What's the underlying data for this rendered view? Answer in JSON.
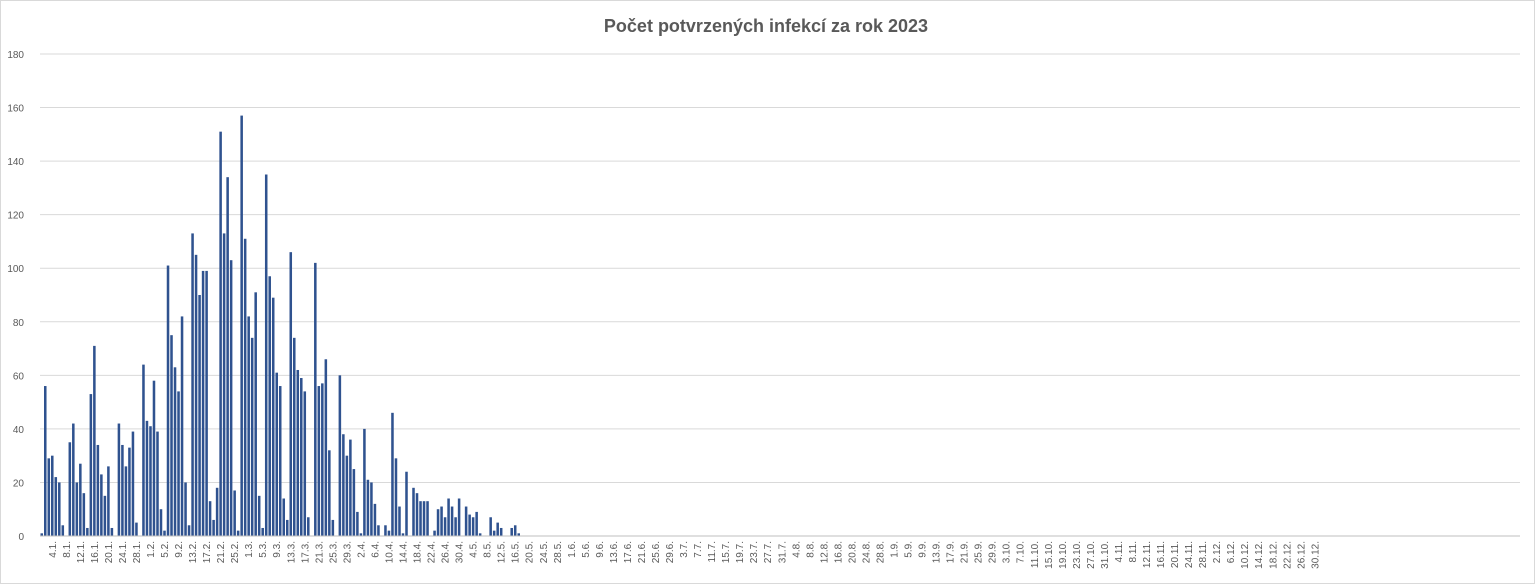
{
  "chart_data": {
    "type": "bar",
    "title": "Počet potvrzených infekcí za rok 2023",
    "xlabel": "",
    "ylabel": "",
    "ylim": [
      0,
      180
    ],
    "yticks": [
      0,
      20,
      40,
      60,
      80,
      100,
      120,
      140,
      160,
      180
    ],
    "grid": true,
    "legend": "none",
    "bar_color": "#2f528f",
    "x_start": "1.1.",
    "x_end": "31.12.",
    "tick_labels": [
      "4.1.",
      "8.1.",
      "12.1.",
      "16.1.",
      "20.1.",
      "24.1.",
      "28.1.",
      "1.2.",
      "5.2.",
      "9.2.",
      "13.2.",
      "17.2.",
      "21.2.",
      "25.2.",
      "1.3.",
      "5.3.",
      "9.3.",
      "13.3.",
      "17.3.",
      "21.3.",
      "25.3.",
      "29.3.",
      "2.4.",
      "6.4.",
      "10.4.",
      "14.4.",
      "18.4.",
      "22.4.",
      "26.4.",
      "30.4.",
      "4.5.",
      "8.5.",
      "12.5.",
      "16.5.",
      "20.5.",
      "24.5.",
      "28.5.",
      "1.6.",
      "5.6.",
      "9.6.",
      "13.6.",
      "17.6.",
      "21.6.",
      "25.6.",
      "29.6.",
      "3.7.",
      "7.7.",
      "11.7.",
      "15.7.",
      "19.7.",
      "23.7.",
      "27.7.",
      "31.7.",
      "4.8.",
      "8.8.",
      "12.8.",
      "16.8.",
      "20.8.",
      "24.8.",
      "28.8.",
      "1.9.",
      "5.9.",
      "9.9.",
      "13.9.",
      "17.9.",
      "21.9.",
      "25.9.",
      "29.9.",
      "3.10.",
      "7.10.",
      "11.10.",
      "15.10.",
      "19.10.",
      "23.10.",
      "27.10.",
      "31.10.",
      "4.11.",
      "8.11.",
      "12.11.",
      "16.11.",
      "20.11.",
      "24.11.",
      "28.11.",
      "2.12.",
      "6.12.",
      "10.12.",
      "14.12.",
      "18.12.",
      "22.12.",
      "26.12.",
      "30.12."
    ],
    "values": [
      1,
      56,
      29,
      30,
      22,
      20,
      4,
      0,
      35,
      42,
      20,
      27,
      16,
      3,
      53,
      71,
      34,
      23,
      15,
      26,
      3,
      0,
      42,
      34,
      26,
      33,
      39,
      5,
      0,
      64,
      43,
      41,
      58,
      39,
      10,
      2,
      101,
      75,
      63,
      54,
      82,
      20,
      4,
      113,
      105,
      90,
      99,
      99,
      13,
      6,
      18,
      151,
      113,
      134,
      103,
      17,
      2,
      157,
      111,
      82,
      74,
      91,
      15,
      3,
      135,
      97,
      89,
      61,
      56,
      14,
      6,
      106,
      74,
      62,
      59,
      54,
      7,
      0,
      102,
      56,
      57,
      66,
      32,
      6,
      0,
      60,
      38,
      30,
      36,
      25,
      9,
      1,
      40,
      21,
      20,
      12,
      4,
      0,
      4,
      2,
      46,
      29,
      11,
      1,
      24,
      0,
      18,
      16,
      13,
      13,
      13,
      0,
      2,
      10,
      11,
      7,
      14,
      11,
      7,
      14,
      0,
      11,
      8,
      7,
      9,
      1,
      0,
      0,
      7,
      2,
      5,
      3,
      0,
      0,
      3,
      4,
      1,
      0,
      0,
      0,
      0,
      0,
      0,
      0,
      0,
      0,
      0,
      0,
      0,
      0,
      0,
      0,
      0,
      0,
      0,
      0,
      0,
      0,
      0,
      0,
      0,
      0,
      0,
      0,
      0,
      0,
      0,
      0,
      0,
      0,
      0,
      0,
      0,
      0,
      0,
      0,
      0,
      0,
      0,
      0,
      0,
      0,
      0,
      0,
      0,
      0,
      0,
      0,
      0,
      0,
      0,
      0,
      0,
      0,
      0,
      0,
      0,
      0,
      0,
      0,
      0,
      0,
      0,
      0,
      0,
      0,
      0,
      0,
      0,
      0,
      0,
      0,
      0,
      0,
      0,
      0,
      0,
      0,
      0,
      0,
      0,
      0,
      0,
      0,
      0,
      0,
      0,
      0,
      0,
      0,
      0,
      0,
      0,
      0,
      0,
      0,
      0,
      0,
      0,
      0,
      0,
      0,
      0,
      0,
      0,
      0,
      0,
      0,
      0,
      0,
      0,
      0,
      0,
      0,
      0,
      0,
      0,
      0,
      0,
      0,
      0,
      0,
      0,
      0,
      0,
      0,
      0,
      0,
      0,
      0,
      0,
      0,
      0,
      0,
      0,
      0,
      0,
      0,
      0,
      0,
      0,
      0,
      0,
      0,
      0,
      0,
      0,
      0,
      0,
      0,
      0,
      0,
      0,
      0,
      0,
      0,
      0,
      0,
      0,
      0,
      0,
      0,
      0,
      0,
      0,
      0,
      0,
      0,
      0,
      0,
      0,
      0,
      0,
      0,
      0,
      0,
      0,
      0,
      0,
      0,
      0,
      0,
      0,
      0,
      0,
      0,
      0,
      0,
      0,
      0,
      0,
      0,
      0,
      0,
      0,
      0,
      0,
      0,
      0,
      0,
      0,
      0,
      0,
      0,
      0,
      0,
      0,
      0,
      0,
      0,
      0,
      0,
      0,
      0,
      0,
      0,
      0,
      0,
      0,
      0,
      0,
      0,
      0,
      0,
      0,
      0,
      0,
      0,
      0,
      0,
      0,
      0,
      0,
      0,
      0,
      0,
      0,
      0,
      0,
      0,
      0,
      0,
      0,
      0,
      0,
      0,
      0,
      0,
      0,
      0,
      0,
      0,
      0,
      0,
      0,
      0,
      0,
      0,
      0,
      0,
      0,
      0,
      0,
      0,
      0,
      0,
      0,
      0,
      0,
      0,
      0,
      0,
      0,
      0,
      0,
      0,
      0,
      0,
      0,
      0,
      0,
      0
    ]
  }
}
